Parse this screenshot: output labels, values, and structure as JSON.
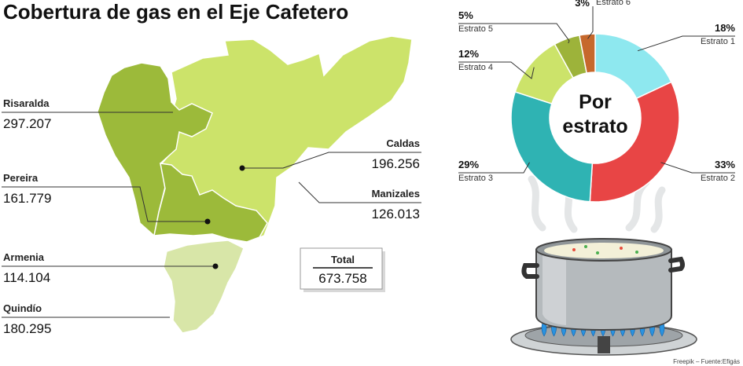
{
  "title": "Cobertura de gas en el Eje Cafetero",
  "regions": [
    {
      "name": "Risaralda",
      "value": "297.207"
    },
    {
      "name": "Pereira",
      "value": "161.779"
    },
    {
      "name": "Armenia",
      "value": "114.104"
    },
    {
      "name": "Quindío",
      "value": "180.295"
    },
    {
      "name": "Caldas",
      "value": "196.256"
    },
    {
      "name": "Manizales",
      "value": "126.013"
    }
  ],
  "total": {
    "label": "Total",
    "value": "673.758"
  },
  "donut_center": {
    "line1": "Por",
    "line2": "estrato"
  },
  "source": "Freepik – Fuente:Efigás",
  "colors": {
    "risaralda": "#9cba3a",
    "caldas": "#cce36a",
    "quindio": "#d8e6a8",
    "pot": "#b8bcbe",
    "flame": "#2a93e0"
  },
  "chart_data": {
    "type": "pie",
    "title": "",
    "center_label": "Por estrato",
    "categories": [
      "Estrato 1",
      "Estrato 2",
      "Estrato 3",
      "Estrato 4",
      "Estrato 5",
      "Estrato 6"
    ],
    "values": [
      18,
      33,
      29,
      12,
      5,
      3
    ],
    "labels": [
      "18%",
      "33%",
      "29%",
      "12%",
      "5%",
      "3%"
    ],
    "colors": [
      "#8ee8ef",
      "#e84545",
      "#2fb3b3",
      "#cce36a",
      "#9db33a",
      "#c6682c"
    ],
    "unit": "%"
  }
}
